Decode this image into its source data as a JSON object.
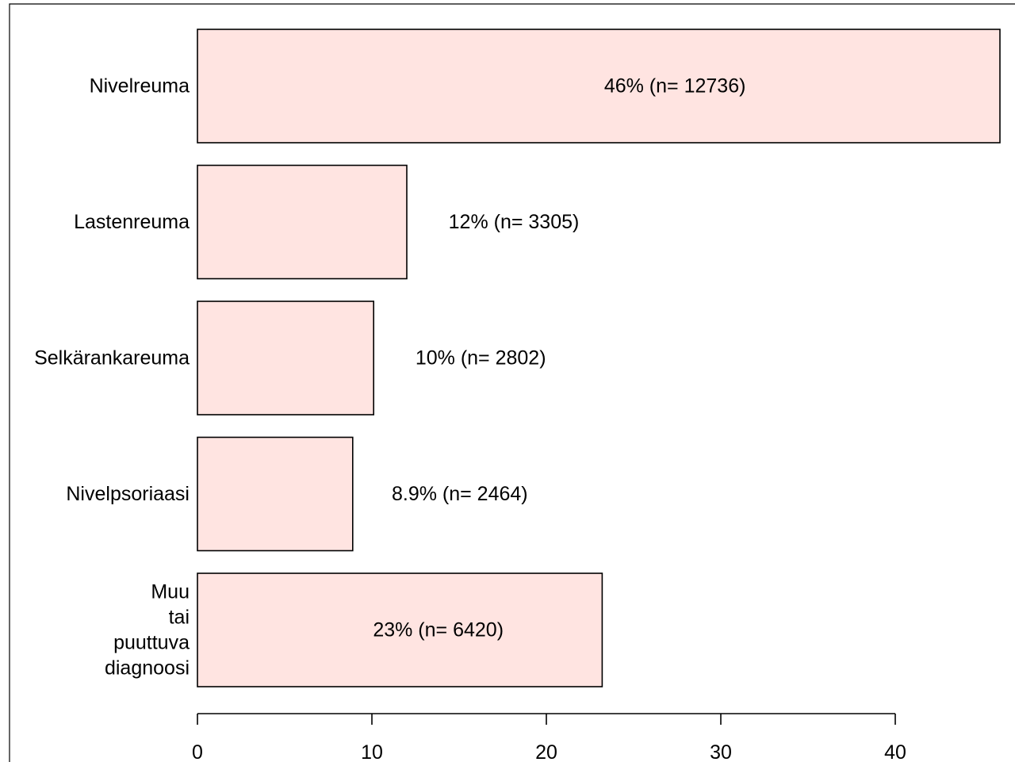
{
  "chart_data": {
    "type": "bar",
    "orientation": "horizontal",
    "categories": [
      [
        "Nivelreuma"
      ],
      [
        "Lastenreuma"
      ],
      [
        "Selkärankareuma"
      ],
      [
        "Nivelpsoriaasi"
      ],
      [
        "Muu",
        "tai",
        "puuttuva",
        "diagnoosi"
      ]
    ],
    "values": [
      46,
      12,
      10.1,
      8.9,
      23.2
    ],
    "data_labels": [
      "46% (n= 12736)",
      "12% (n= 3305)",
      "10% (n= 2802)",
      "8.9% (n= 2464)",
      "23% (n= 6420)"
    ],
    "xticks": [
      "0",
      "10",
      "20",
      "30",
      "40"
    ],
    "xlim": [
      0,
      46
    ],
    "bar_color": "#ffe4e1",
    "grid": false,
    "title": "",
    "xlabel": "",
    "ylabel": ""
  }
}
